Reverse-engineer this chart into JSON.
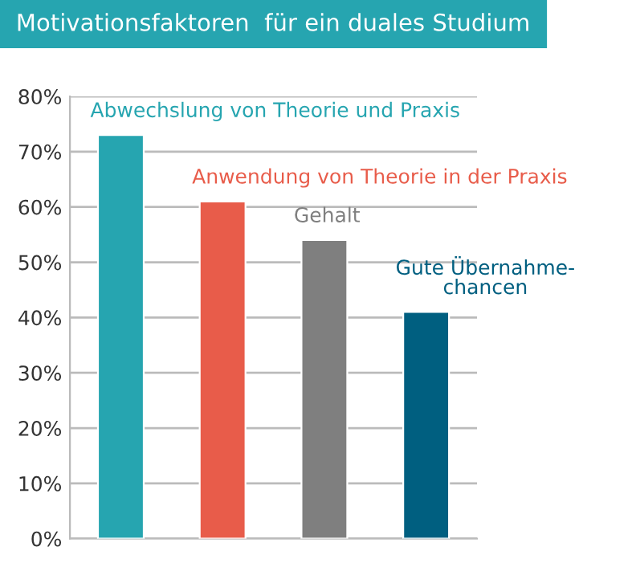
{
  "chart_data": {
    "type": "bar",
    "title": "Motivationsfaktoren  für ein duales Studium",
    "categories": [
      null,
      null,
      null,
      null
    ],
    "annotations": [
      "Abwechslung von Theorie und Praxis",
      "Anwendung von Theorie in der Praxis",
      "Gehalt",
      "Gute Übernahme-\nchancen"
    ],
    "values": [
      73,
      61,
      54,
      41
    ],
    "colors": [
      "#26a5b0",
      "#e85c4a",
      "#7f7f7f",
      "#005f80"
    ],
    "ylim": [
      0,
      80
    ],
    "yticks": [
      {
        "value": 0,
        "label": "0%"
      },
      {
        "value": 10,
        "label": "10%"
      },
      {
        "value": 20,
        "label": "20%"
      },
      {
        "value": 30,
        "label": "30%"
      },
      {
        "value": 40,
        "label": "40%"
      },
      {
        "value": 50,
        "label": "50%"
      },
      {
        "value": 60,
        "label": "60%"
      },
      {
        "value": 70,
        "label": "70%"
      },
      {
        "value": 80,
        "label": "80%"
      }
    ],
    "grid": "y"
  }
}
